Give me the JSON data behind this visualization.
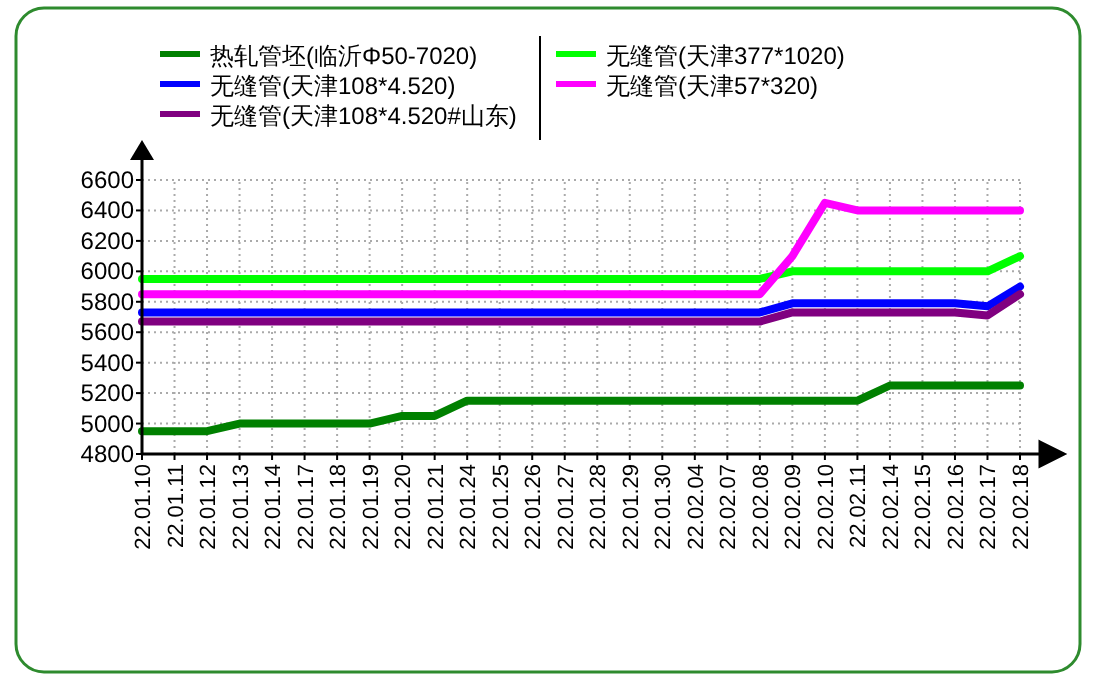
{
  "chart_data": {
    "type": "line",
    "categories": [
      "22.01.10",
      "22.01.11",
      "22.01.12",
      "22.01.13",
      "22.01.14",
      "22.01.17",
      "22.01.18",
      "22.01.19",
      "22.01.20",
      "22.01.21",
      "22.01.24",
      "22.01.25",
      "22.01.26",
      "22.01.27",
      "22.01.28",
      "22.01.29",
      "22.01.30",
      "22.02.04",
      "22.02.07",
      "22.02.08",
      "22.02.09",
      "22.02.10",
      "22.02.11",
      "22.02.14",
      "22.02.15",
      "22.02.16",
      "22.02.17",
      "22.02.18"
    ],
    "series": [
      {
        "name": "热轧管坯(临沂Φ50-7020)",
        "color": "#008000",
        "values": [
          4950,
          4950,
          4950,
          5000,
          5000,
          5000,
          5000,
          5000,
          5050,
          5050,
          5150,
          5150,
          5150,
          5150,
          5150,
          5150,
          5150,
          5150,
          5150,
          5150,
          5150,
          5150,
          5150,
          5250,
          5250,
          5250,
          5250,
          5250
        ]
      },
      {
        "name": "无缝管(天津108*4.520)",
        "color": "#0000ff",
        "values": [
          5730,
          5730,
          5730,
          5730,
          5730,
          5730,
          5730,
          5730,
          5730,
          5730,
          5730,
          5730,
          5730,
          5730,
          5730,
          5730,
          5730,
          5730,
          5730,
          5730,
          5790,
          5790,
          5790,
          5790,
          5790,
          5790,
          5770,
          5900
        ]
      },
      {
        "name": "无缝管(天津108*4.520#山东)",
        "color": "#800080",
        "values": [
          5670,
          5670,
          5670,
          5670,
          5670,
          5670,
          5670,
          5670,
          5670,
          5670,
          5670,
          5670,
          5670,
          5670,
          5670,
          5670,
          5670,
          5670,
          5670,
          5670,
          5730,
          5730,
          5730,
          5730,
          5730,
          5730,
          5710,
          5850
        ]
      },
      {
        "name": "无缝管(天津377*1020)",
        "color": "#00ff00",
        "values": [
          5950,
          5950,
          5950,
          5950,
          5950,
          5950,
          5950,
          5950,
          5950,
          5950,
          5950,
          5950,
          5950,
          5950,
          5950,
          5950,
          5950,
          5950,
          5950,
          5950,
          6000,
          6000,
          6000,
          6000,
          6000,
          6000,
          6000,
          6100
        ]
      },
      {
        "name": "无缝管(天津57*320)",
        "color": "#ff00ff",
        "values": [
          5850,
          5850,
          5850,
          5850,
          5850,
          5850,
          5850,
          5850,
          5850,
          5850,
          5850,
          5850,
          5850,
          5850,
          5850,
          5850,
          5850,
          5850,
          5850,
          5850,
          6100,
          6450,
          6400,
          6400,
          6400,
          6400,
          6400,
          6400
        ]
      }
    ],
    "ylim": [
      4800,
      6600
    ],
    "yticks": [
      4800,
      5000,
      5200,
      5400,
      5600,
      5800,
      6000,
      6200,
      6400,
      6600
    ],
    "grid": true,
    "legend": "top",
    "line_style": "solid",
    "marker": "none"
  }
}
